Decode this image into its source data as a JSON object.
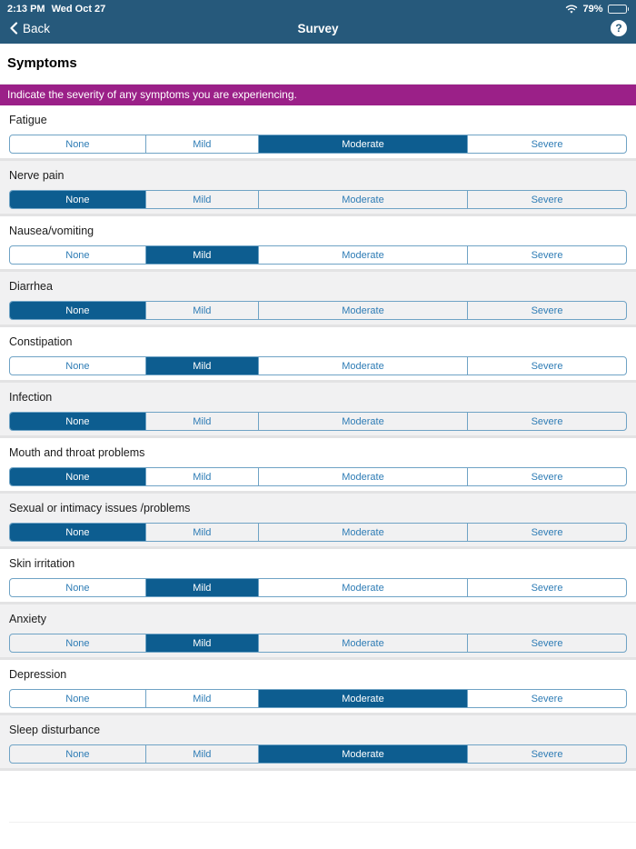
{
  "status_bar": {
    "time": "2:13 PM",
    "date": "Wed Oct 27",
    "battery_percent": "79%",
    "wifi_icon": "wifi-icon",
    "battery_icon": "battery-icon"
  },
  "nav": {
    "back_label": "Back",
    "title": "Survey",
    "help_label": "?"
  },
  "page": {
    "heading": "Symptoms",
    "instruction": "Indicate the severity of any symptoms you are experiencing."
  },
  "severity_options": [
    "None",
    "Mild",
    "Moderate",
    "Severe"
  ],
  "symptoms": [
    {
      "label": "Fatigue",
      "selected": "Moderate"
    },
    {
      "label": "Nerve pain",
      "selected": "None"
    },
    {
      "label": "Nausea/vomiting",
      "selected": "Mild"
    },
    {
      "label": "Diarrhea",
      "selected": "None"
    },
    {
      "label": "Constipation",
      "selected": "Mild"
    },
    {
      "label": "Infection",
      "selected": "None"
    },
    {
      "label": "Mouth and throat problems",
      "selected": "None"
    },
    {
      "label": "Sexual or intimacy issues /problems",
      "selected": "None"
    },
    {
      "label": "Skin irritation",
      "selected": "Mild"
    },
    {
      "label": "Anxiety",
      "selected": "Mild"
    },
    {
      "label": "Depression",
      "selected": "Moderate"
    },
    {
      "label": "Sleep disturbance",
      "selected": "Moderate"
    }
  ],
  "colors": {
    "nav_bg": "#26597B",
    "selected_segment": "#0D5D90",
    "segment_text": "#2E7CB5",
    "segment_border": "#6FA3C5",
    "banner_bg": "#9B2088",
    "alt_row_bg": "#F1F1F2",
    "row_separator": "#E3E3E4"
  }
}
